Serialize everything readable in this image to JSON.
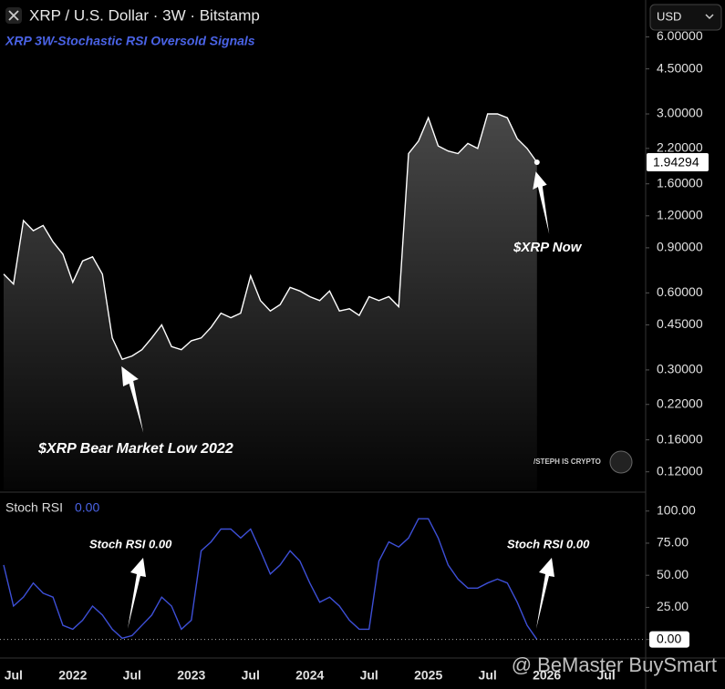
{
  "header": {
    "title": "XRP / U.S. Dollar · 3W · Bitstamp",
    "currency": "USD",
    "watermark": "@ BeMaster BuySmart"
  },
  "chart_data": [
    {
      "type": "line",
      "subtitle": "XRP 3W-Stochastic RSI Oversold Signals",
      "log_scale": true,
      "color": "#ffffff",
      "values": [
        0.71,
        0.65,
        1.15,
        1.05,
        1.1,
        0.95,
        0.85,
        0.66,
        0.8,
        0.83,
        0.71,
        0.4,
        0.33,
        0.34,
        0.36,
        0.4,
        0.45,
        0.37,
        0.36,
        0.39,
        0.4,
        0.44,
        0.5,
        0.48,
        0.5,
        0.7,
        0.56,
        0.51,
        0.54,
        0.63,
        0.61,
        0.58,
        0.56,
        0.61,
        0.51,
        0.52,
        0.49,
        0.58,
        0.56,
        0.58,
        0.53,
        2.1,
        2.35,
        2.9,
        2.25,
        2.15,
        2.1,
        2.3,
        2.2,
        3.0,
        3.0,
        2.9,
        2.4,
        2.2,
        1.94294,
        null,
        null,
        null,
        null,
        null,
        null,
        null,
        null,
        null,
        null,
        null
      ],
      "current_price": 1.94294,
      "ylim": [
        0.1016,
        8.36
      ],
      "yticks": [
        {
          "value": 6,
          "label": "6.00000"
        },
        {
          "value": 4.5,
          "label": "4.50000"
        },
        {
          "value": 3,
          "label": "3.00000"
        },
        {
          "value": 2.2,
          "label": "2.20000"
        },
        {
          "value": 1.6,
          "label": "1.60000"
        },
        {
          "value": 1.2,
          "label": "1.20000"
        },
        {
          "value": 0.9,
          "label": "0.90000"
        },
        {
          "value": 0.6,
          "label": "0.60000"
        },
        {
          "value": 0.45,
          "label": "0.45000"
        },
        {
          "value": 0.3,
          "label": "0.30000"
        },
        {
          "value": 0.22,
          "label": "0.22000"
        },
        {
          "value": 0.16,
          "label": "0.16000"
        },
        {
          "value": 0.12,
          "label": "0.12000"
        }
      ],
      "annotations": [
        "$XRP Now",
        "$XRP Bear Market Low 2022",
        "/STEPH IS CRYPTO"
      ]
    },
    {
      "type": "line",
      "name": "Stoch RSI",
      "color": "#3d4fd6",
      "current_value": {
        "value": 0,
        "label": "0.00"
      },
      "categories": [
        null,
        "Jul",
        null,
        null,
        null,
        null,
        null,
        "2022",
        null,
        null,
        null,
        null,
        null,
        "Jul",
        null,
        null,
        null,
        null,
        null,
        "2023",
        null,
        null,
        null,
        null,
        null,
        "Jul",
        null,
        null,
        null,
        null,
        null,
        "2024",
        null,
        null,
        null,
        null,
        null,
        "Jul",
        null,
        null,
        null,
        null,
        null,
        "2025",
        null,
        null,
        null,
        null,
        null,
        "Jul",
        null,
        null,
        null,
        null,
        null,
        "2026",
        null,
        null,
        null,
        null,
        null,
        "Jul",
        null,
        null,
        null,
        null
      ],
      "values": [
        58,
        26,
        33,
        44,
        36,
        33,
        11,
        8,
        15,
        26,
        19,
        8,
        1,
        3,
        11,
        19,
        33,
        26,
        8,
        15,
        69,
        76,
        86,
        86,
        79,
        86,
        69,
        51,
        58,
        69,
        61,
        44,
        29,
        33,
        26,
        15,
        8,
        8,
        61,
        76,
        72,
        79,
        94,
        94,
        79,
        58,
        47,
        40,
        40,
        44,
        47,
        44,
        29,
        11,
        0,
        null,
        null,
        null,
        null,
        null,
        null,
        null,
        null,
        null,
        null,
        null
      ],
      "ylim": [
        -13,
        114
      ],
      "yticks": [
        {
          "value": 100,
          "label": "100.00"
        },
        {
          "value": 75,
          "label": "75.00"
        },
        {
          "value": 50,
          "label": "50.00"
        },
        {
          "value": 25,
          "label": "25.00"
        },
        {
          "value": 0,
          "label": "0.00"
        }
      ],
      "annotations": [
        "Stoch RSI 0.00",
        "Stoch RSI 0.00"
      ]
    }
  ]
}
